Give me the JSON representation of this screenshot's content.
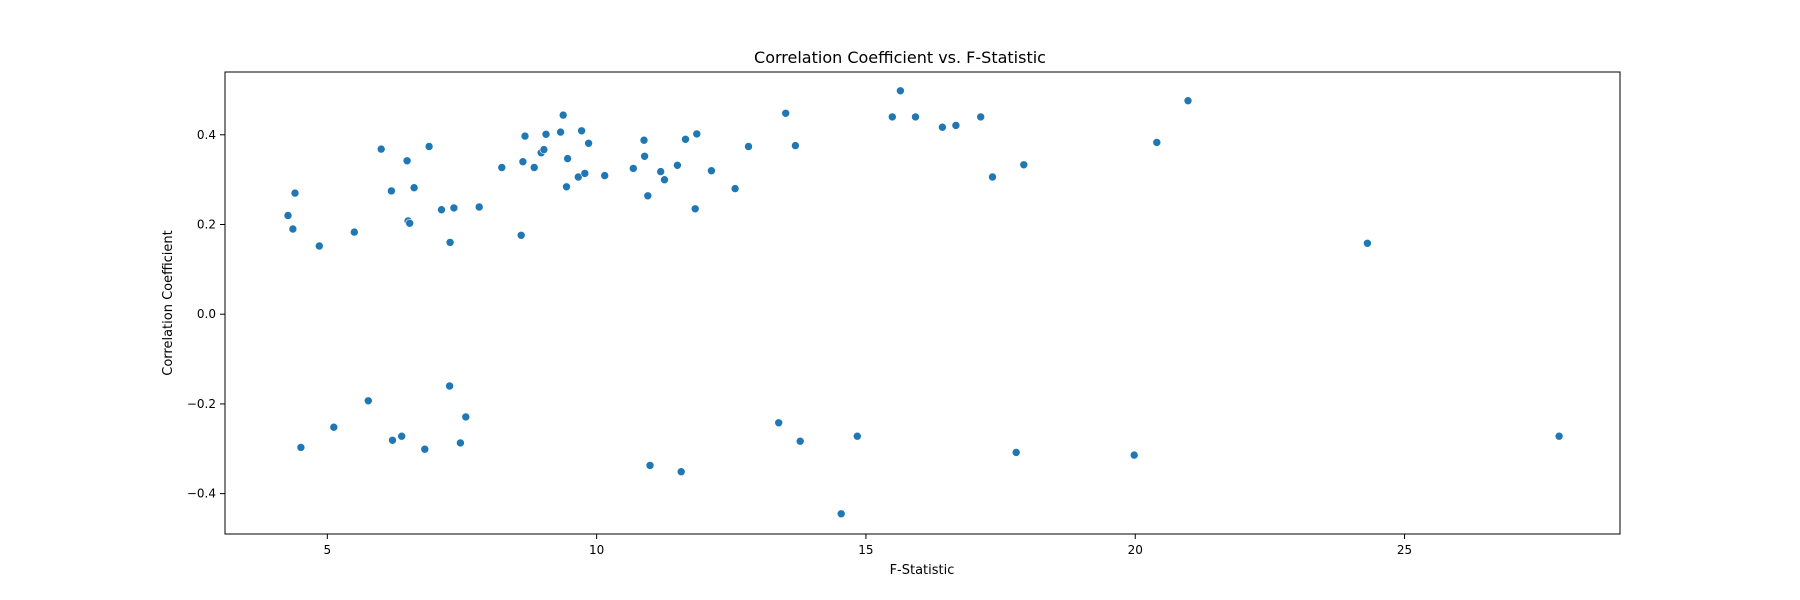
{
  "chart_data": {
    "type": "scatter",
    "title": "Correlation Coefficient vs. F-Statistic",
    "xlabel": "F-Statistic",
    "ylabel": "Correlation Coefficient",
    "xlim": [
      3.1,
      29.0
    ],
    "ylim": [
      -0.49,
      0.54
    ],
    "xticks": [
      5,
      10,
      15,
      20,
      25
    ],
    "yticks": [
      -0.4,
      -0.2,
      0.0,
      0.2,
      0.4
    ],
    "ytick_labels": [
      "−0.4",
      "−0.2",
      "0.0",
      "0.2",
      "0.4"
    ],
    "grid": false,
    "marker_color": "#1f77b4",
    "points": [
      [
        4.27,
        0.22
      ],
      [
        4.36,
        0.19
      ],
      [
        4.4,
        0.27
      ],
      [
        4.51,
        -0.297
      ],
      [
        4.85,
        0.152
      ],
      [
        5.12,
        -0.252
      ],
      [
        5.5,
        0.183
      ],
      [
        5.76,
        -0.193
      ],
      [
        6.0,
        0.368
      ],
      [
        6.19,
        0.275
      ],
      [
        6.21,
        -0.281
      ],
      [
        6.38,
        -0.272
      ],
      [
        6.48,
        0.342
      ],
      [
        6.5,
        0.208
      ],
      [
        6.53,
        0.203
      ],
      [
        6.61,
        0.282
      ],
      [
        6.81,
        -0.301
      ],
      [
        6.89,
        0.374
      ],
      [
        7.12,
        0.233
      ],
      [
        7.27,
        -0.16
      ],
      [
        7.28,
        0.16
      ],
      [
        7.35,
        0.237
      ],
      [
        7.47,
        -0.287
      ],
      [
        7.57,
        -0.229
      ],
      [
        7.82,
        0.239
      ],
      [
        8.24,
        0.327
      ],
      [
        8.6,
        0.176
      ],
      [
        8.63,
        0.34
      ],
      [
        8.67,
        0.397
      ],
      [
        8.84,
        0.327
      ],
      [
        8.97,
        0.36
      ],
      [
        9.02,
        0.367
      ],
      [
        9.06,
        0.401
      ],
      [
        9.33,
        0.406
      ],
      [
        9.38,
        0.444
      ],
      [
        9.44,
        0.284
      ],
      [
        9.46,
        0.347
      ],
      [
        9.66,
        0.306
      ],
      [
        9.72,
        0.409
      ],
      [
        9.78,
        0.314
      ],
      [
        9.85,
        0.381
      ],
      [
        10.15,
        0.309
      ],
      [
        10.68,
        0.325
      ],
      [
        10.88,
        0.388
      ],
      [
        10.89,
        0.352
      ],
      [
        10.95,
        0.264
      ],
      [
        10.99,
        -0.337
      ],
      [
        11.19,
        0.318
      ],
      [
        11.26,
        0.3
      ],
      [
        11.5,
        0.332
      ],
      [
        11.57,
        -0.351
      ],
      [
        11.65,
        0.39
      ],
      [
        11.83,
        0.235
      ],
      [
        11.86,
        0.402
      ],
      [
        12.13,
        0.32
      ],
      [
        12.57,
        0.28
      ],
      [
        12.82,
        0.374
      ],
      [
        13.38,
        -0.242
      ],
      [
        13.51,
        0.448
      ],
      [
        13.69,
        0.376
      ],
      [
        13.78,
        -0.283
      ],
      [
        14.54,
        -0.445
      ],
      [
        14.84,
        -0.272
      ],
      [
        15.49,
        0.44
      ],
      [
        15.64,
        0.498
      ],
      [
        15.92,
        0.44
      ],
      [
        16.42,
        0.417
      ],
      [
        16.67,
        0.421
      ],
      [
        17.13,
        0.44
      ],
      [
        17.35,
        0.306
      ],
      [
        17.79,
        -0.308
      ],
      [
        17.93,
        0.333
      ],
      [
        19.98,
        -0.314
      ],
      [
        20.4,
        0.383
      ],
      [
        20.98,
        0.476
      ],
      [
        24.31,
        0.158
      ],
      [
        27.87,
        -0.272
      ]
    ]
  }
}
